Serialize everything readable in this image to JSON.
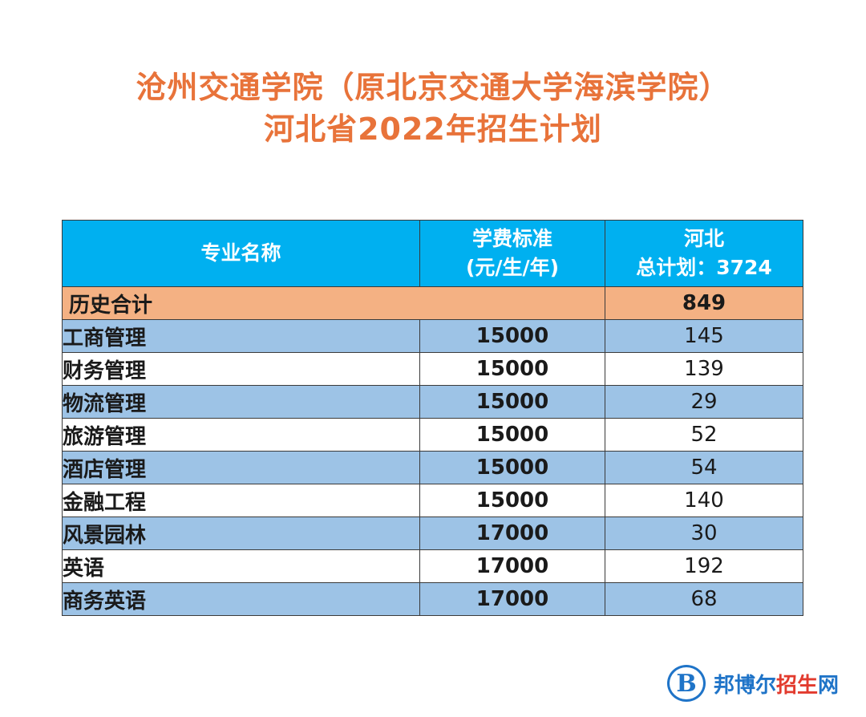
{
  "title": {
    "line1": "沧州交通学院（原北京交通大学海滨学院）",
    "line2": "河北省2022年招生计划"
  },
  "table": {
    "headers": {
      "major": "专业名称",
      "fee_line1": "学费标准",
      "fee_line2": "(元/生/年)",
      "region": "河北",
      "total": "总计划：3724"
    },
    "summary": {
      "label": "历史合计",
      "value": "849"
    },
    "rows": [
      {
        "name": "工商管理",
        "fee": "15000",
        "count": "145"
      },
      {
        "name": "财务管理",
        "fee": "15000",
        "count": "139"
      },
      {
        "name": "物流管理",
        "fee": "15000",
        "count": "29"
      },
      {
        "name": "旅游管理",
        "fee": "15000",
        "count": "52"
      },
      {
        "name": "酒店管理",
        "fee": "15000",
        "count": "54"
      },
      {
        "name": "金融工程",
        "fee": "15000",
        "count": "140"
      },
      {
        "name": "风景园林",
        "fee": "17000",
        "count": "30"
      },
      {
        "name": "英语",
        "fee": "17000",
        "count": "192"
      },
      {
        "name": "商务英语",
        "fee": "17000",
        "count": "68"
      }
    ]
  },
  "watermark": {
    "mark": "B",
    "text_a": "邦博尔",
    "text_b": "招生",
    "text_c": "网"
  }
}
